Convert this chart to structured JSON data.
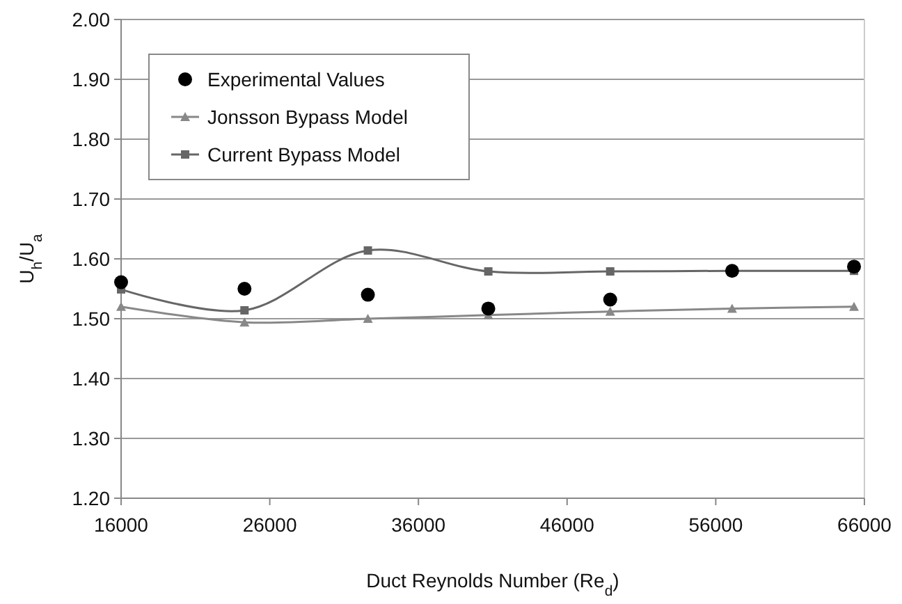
{
  "chart_data": {
    "type": "line",
    "xlabel": "Duct Reynolds Number (Re$_{d}$)",
    "ylabel": "U$_{h}$/U$_{a}$",
    "xlim": [
      16000,
      66000
    ],
    "xticks": [
      16000,
      26000,
      36000,
      46000,
      56000,
      66000
    ],
    "ylim": [
      1.2,
      2.0
    ],
    "yticks": [
      {
        "value": 1.2,
        "label": "1.20"
      },
      {
        "value": 1.3,
        "label": "1.30"
      },
      {
        "value": 1.4,
        "label": "1.40"
      },
      {
        "value": 1.5,
        "label": "1.50"
      },
      {
        "value": 1.6,
        "label": "1.60"
      },
      {
        "value": 1.7,
        "label": "1.70"
      },
      {
        "value": 1.8,
        "label": "1.80"
      },
      {
        "value": 1.9,
        "label": "1.90"
      },
      {
        "value": 2.0,
        "label": "2.00"
      }
    ],
    "grid": "y",
    "legend": "top left",
    "x": [
      16000,
      24300,
      32600,
      40700,
      48900,
      57100,
      65300
    ],
    "series": [
      {
        "name": "Experimental Values",
        "type": "scatter",
        "marker": "circle",
        "color": "#000000",
        "values": [
          1.561,
          1.55,
          1.54,
          1.517,
          1.532,
          1.58,
          1.587
        ]
      },
      {
        "name": "Jonsson Bypass Model",
        "type": "line",
        "marker": "triangle",
        "color": "#888888",
        "values": [
          1.52,
          1.494,
          1.5,
          1.506,
          1.512,
          1.517,
          1.52
        ]
      },
      {
        "name": "Current Bypass Model",
        "type": "line",
        "marker": "square",
        "color": "#666666",
        "values": [
          1.549,
          1.514,
          1.614,
          1.579,
          1.579,
          1.58,
          1.58
        ]
      }
    ]
  }
}
